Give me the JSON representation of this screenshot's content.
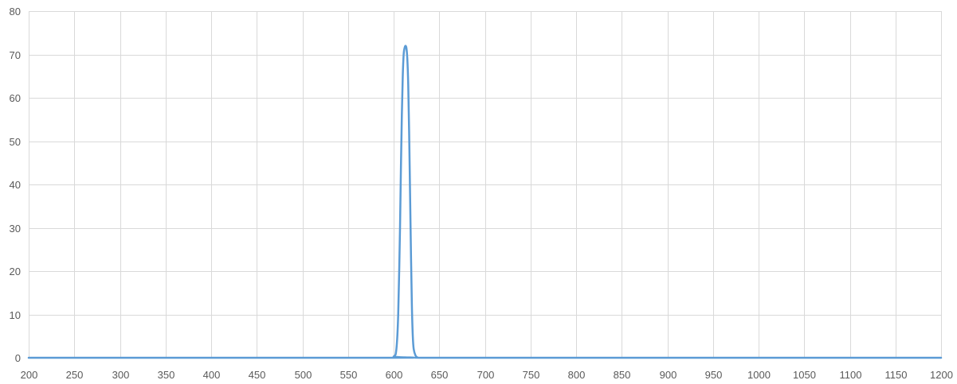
{
  "chart_data": {
    "type": "line",
    "title": "",
    "xlabel": "",
    "ylabel": "",
    "xlim": [
      200,
      1200
    ],
    "ylim": [
      0,
      80
    ],
    "x_ticks": [
      200,
      250,
      300,
      350,
      400,
      450,
      500,
      550,
      600,
      650,
      700,
      750,
      800,
      850,
      900,
      950,
      1000,
      1050,
      1100,
      1150,
      1200
    ],
    "y_ticks": [
      0,
      10,
      20,
      30,
      40,
      50,
      60,
      70,
      80
    ],
    "grid": true,
    "legend": "none",
    "series": [
      {
        "color": "#5b9bd5",
        "x": [
          200,
          590,
          600,
          603,
          605,
          607,
          608,
          609,
          610,
          611,
          612,
          613,
          614,
          615,
          616,
          617,
          618,
          619,
          620,
          621,
          622,
          624,
          626,
          630,
          700,
          1200
        ],
        "y": [
          0,
          0,
          0.3,
          2,
          10,
          30,
          44,
          56,
          65,
          70,
          71.5,
          72,
          71.5,
          69,
          63,
          52,
          38,
          24,
          12,
          5,
          2,
          0.5,
          0.1,
          0,
          0,
          0
        ]
      }
    ]
  }
}
